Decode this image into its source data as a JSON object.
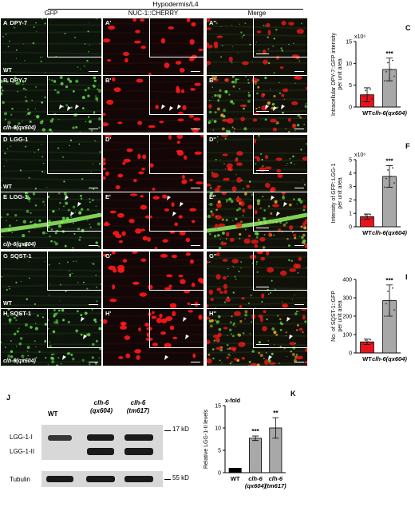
{
  "header": {
    "title": "Hypodermis/L4",
    "col_gfp": "GFP",
    "col_cherry": "NUC-1::CHERRY",
    "col_merge": "Merge"
  },
  "rows": [
    {
      "letters": [
        "A",
        "A'",
        "A''"
      ],
      "marker": "DPY-7",
      "genotype": "WT",
      "mutant": false
    },
    {
      "letters": [
        "B",
        "B'",
        "B''"
      ],
      "marker": "DPY-7",
      "genotype": "clh-6(qx604)",
      "mutant": true
    },
    {
      "letters": [
        "D",
        "D'",
        "D''"
      ],
      "marker": "LGG-1",
      "genotype": "WT",
      "mutant": false
    },
    {
      "letters": [
        "E",
        "E'",
        "E''"
      ],
      "marker": "LGG-1",
      "genotype": "clh-6(qx604)",
      "mutant": true
    },
    {
      "letters": [
        "G",
        "G'",
        "G''"
      ],
      "marker": "SQST-1",
      "genotype": "WT",
      "mutant": false
    },
    {
      "letters": [
        "H",
        "H'",
        "H''"
      ],
      "marker": "SQST-1",
      "genotype": "clh-6(qx604)",
      "mutant": true
    }
  ],
  "chart_data": [
    {
      "panel": "C",
      "type": "bar",
      "categories": [
        "WT",
        "clh-6(qx604)"
      ],
      "values": [
        2.8,
        8.6
      ],
      "errors": [
        1.6,
        2.6
      ],
      "colors": [
        "#e8141c",
        "#a8a8a8"
      ],
      "ylabel": "Intracellular DPY-7::GFP intensity per unit area",
      "multiplier": "x10⁶",
      "ylim": [
        0,
        15
      ],
      "yticks": [
        0,
        5,
        10,
        15
      ],
      "significance": "***"
    },
    {
      "panel": "F",
      "type": "bar",
      "categories": [
        "WT",
        "clh-6(qx604)"
      ],
      "values": [
        0.75,
        3.75
      ],
      "errors": [
        0.2,
        0.8
      ],
      "colors": [
        "#e8141c",
        "#a8a8a8"
      ],
      "ylabel": "Intensity of GFP::LGG-1 per unit area",
      "multiplier": "x10⁶",
      "ylim": [
        0,
        5
      ],
      "yticks": [
        0,
        1,
        2,
        3,
        4,
        5
      ],
      "significance": "***"
    },
    {
      "panel": "I",
      "type": "bar",
      "categories": [
        "WT",
        "clh-6(qx604)"
      ],
      "values": [
        60,
        285
      ],
      "errors": [
        15,
        85
      ],
      "colors": [
        "#e8141c",
        "#a8a8a8"
      ],
      "ylabel": "No. of SQST-1::GFP per unit area",
      "multiplier": "",
      "ylim": [
        0,
        400
      ],
      "yticks": [
        0,
        100,
        200,
        300,
        400
      ],
      "significance": "***"
    },
    {
      "panel": "K",
      "type": "bar",
      "categories": [
        "WT",
        "clh-6 (qx604)",
        "clh-6 (tm617)"
      ],
      "values": [
        1,
        7.7,
        10
      ],
      "errors": [
        0,
        0.5,
        2.3
      ],
      "colors": [
        "#000000",
        "#a8a8a8",
        "#a8a8a8"
      ],
      "ylabel": "Relative LGG-1-II levels",
      "multiplier": "x-fold",
      "ylim": [
        0,
        15
      ],
      "yticks": [
        0,
        5,
        10,
        15
      ],
      "significance": [
        "",
        "***",
        "**"
      ]
    }
  ],
  "western": {
    "letter": "J",
    "lanes": [
      "WT",
      "clh-6 (qx604)",
      "clh-6 (tm617)"
    ],
    "bands": [
      "LGG-1-I",
      "LGG-1-II",
      "Tubulin"
    ],
    "markers": [
      "17 kD",
      "55 kD"
    ]
  }
}
